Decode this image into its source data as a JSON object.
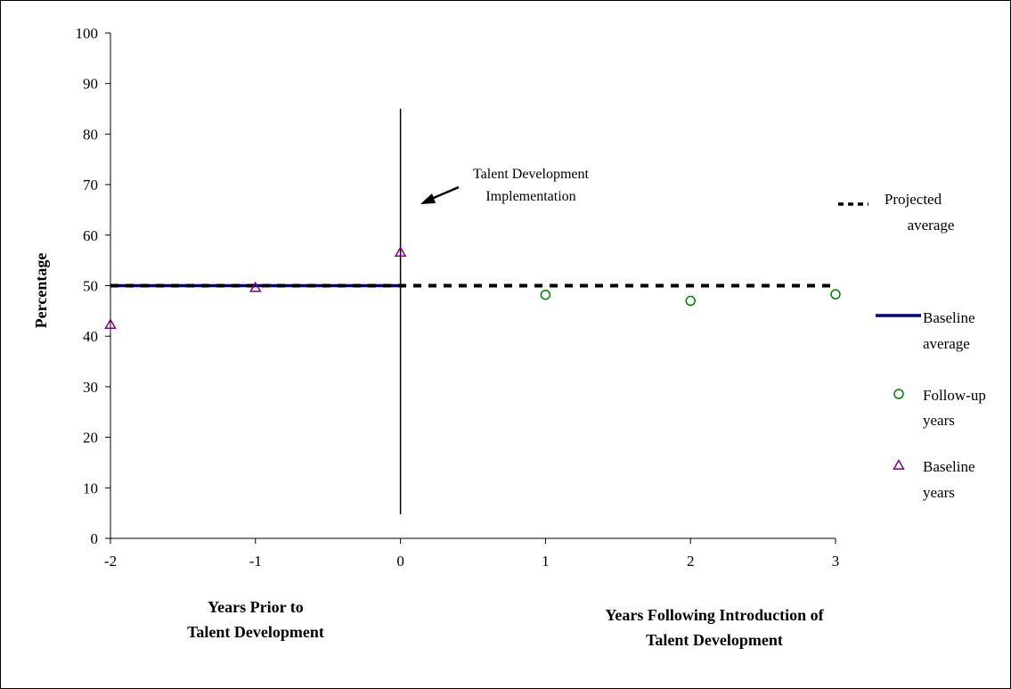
{
  "chart_data": {
    "type": "scatter",
    "ylabel": "Percentage",
    "ylim": [
      0,
      100
    ],
    "yticks": [
      "0",
      "10",
      "20",
      "30",
      "40",
      "50",
      "60",
      "70",
      "80",
      "90",
      "100"
    ],
    "xlim": [
      -2,
      3
    ],
    "xticks": [
      "-2",
      "-1",
      "0",
      "1",
      "2",
      "3"
    ],
    "x_group_labels": {
      "prior": [
        "Years Prior to",
        "Talent Development"
      ],
      "following": [
        "Years Following Introduction of",
        "Talent Development"
      ]
    },
    "annotation": {
      "lines": [
        "Talent Development",
        "Implementation"
      ],
      "x": 0
    },
    "grid": false,
    "legend_position": "right",
    "series": [
      {
        "name": "Baseline years",
        "marker": "triangle",
        "color": "#800080",
        "x": [
          -2,
          -1,
          0
        ],
        "y": [
          42.3,
          49.6,
          56.6
        ]
      },
      {
        "name": "Follow-up years",
        "marker": "circle",
        "color": "#008000",
        "x": [
          1,
          2,
          3
        ],
        "y": [
          48.2,
          47.0,
          48.3
        ]
      },
      {
        "name": "Baseline average",
        "style": "solid",
        "color": "#000080",
        "x": [
          -2,
          0
        ],
        "y": [
          50,
          50
        ]
      },
      {
        "name": "Projected average",
        "style": "dashed",
        "color": "#000000",
        "x": [
          -2,
          3
        ],
        "y": [
          50,
          50
        ]
      }
    ],
    "legend": [
      {
        "lines": [
          "Projected",
          "average"
        ],
        "symbol": "dashed"
      },
      {
        "lines": [
          "Baseline",
          "average"
        ],
        "symbol": "solid-line"
      },
      {
        "lines": [
          "Follow-up",
          "years"
        ],
        "symbol": "circle"
      },
      {
        "lines": [
          "Baseline",
          "years"
        ],
        "symbol": "triangle"
      }
    ]
  }
}
